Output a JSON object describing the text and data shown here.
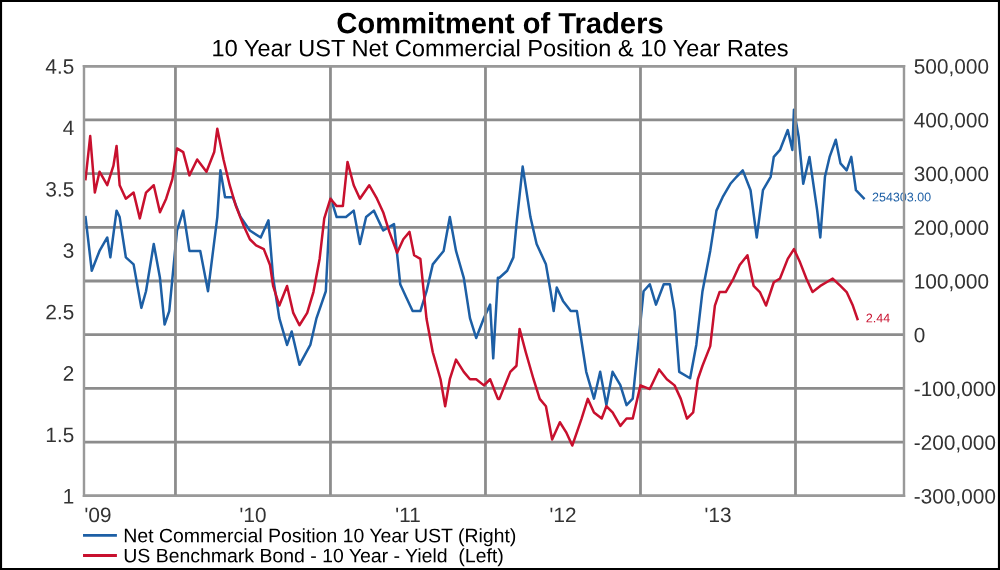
{
  "chart_data": {
    "type": "line",
    "title": "Commitment of Traders",
    "subtitle": "10 Year UST Net Commercial Position & 10 Year Rates",
    "xlim": [
      2008.91,
      2014.2
    ],
    "xticks": [
      {
        "value": 2009,
        "label": "'09"
      },
      {
        "value": 2010,
        "label": "'10"
      },
      {
        "value": 2011,
        "label": "'11"
      },
      {
        "value": 2012,
        "label": "'12"
      },
      {
        "value": 2013,
        "label": "'13"
      },
      {
        "value": 2009.5,
        "label": null
      },
      {
        "value": 2010.5,
        "label": null
      },
      {
        "value": 2011.5,
        "label": null
      },
      {
        "value": 2012.5,
        "label": null
      },
      {
        "value": 2013.5,
        "label": null
      }
    ],
    "ylim": [
      1,
      4.5
    ],
    "yticks": [
      1,
      1.5,
      2,
      2.5,
      3,
      3.5,
      4,
      4.5
    ],
    "y2lim": [
      -300000,
      500000
    ],
    "y2ticks": [
      {
        "value": -300000,
        "label": "-300,000"
      },
      {
        "value": -200000,
        "label": "-200,000"
      },
      {
        "value": -100000,
        "label": "-100,000"
      },
      {
        "value": 0,
        "label": "0"
      },
      {
        "value": 100000,
        "label": "100,000"
      },
      {
        "value": 200000,
        "label": "200,000"
      },
      {
        "value": 300000,
        "label": "300,000"
      },
      {
        "value": 400000,
        "label": "400,000"
      },
      {
        "value": 500000,
        "label": "500,000"
      }
    ],
    "grid": true,
    "legend": "bottom",
    "marker": "none",
    "line_style": "solid",
    "series": [
      {
        "name": "Net Commercial Position 10 Year UST (Right)",
        "color": "#1d5fa5",
        "axis": "y2",
        "x": [
          2008.92,
          2008.96,
          2009.01,
          2009.06,
          2009.08,
          2009.12,
          2009.14,
          2009.18,
          2009.23,
          2009.28,
          2009.31,
          2009.36,
          2009.4,
          2009.43,
          2009.46,
          2009.51,
          2009.55,
          2009.59,
          2009.66,
          2009.71,
          2009.77,
          2009.79,
          2009.82,
          2009.87,
          2009.92,
          2009.98,
          2010.05,
          2010.1,
          2010.13,
          2010.17,
          2010.22,
          2010.25,
          2010.3,
          2010.37,
          2010.41,
          2010.47,
          2010.5,
          2010.54,
          2010.6,
          2010.65,
          2010.69,
          2010.73,
          2010.78,
          2010.84,
          2010.91,
          2010.95,
          2010.99,
          2011.03,
          2011.08,
          2011.12,
          2011.16,
          2011.23,
          2011.27,
          2011.31,
          2011.36,
          2011.4,
          2011.44,
          2011.49,
          2011.53,
          2011.55,
          2011.58,
          2011.59,
          2011.64,
          2011.68,
          2011.7,
          2011.74,
          2011.79,
          2011.83,
          2011.89,
          2011.92,
          2011.94,
          2011.96,
          2012.0,
          2012.05,
          2012.09,
          2012.11,
          2012.15,
          2012.2,
          2012.24,
          2012.28,
          2012.32,
          2012.37,
          2012.41,
          2012.45,
          2012.52,
          2012.56,
          2012.6,
          2012.65,
          2012.69,
          2012.72,
          2012.75,
          2012.82,
          2012.86,
          2012.9,
          2012.95,
          2012.99,
          2013.03,
          2013.08,
          2013.12,
          2013.16,
          2013.21,
          2013.25,
          2013.29,
          2013.34,
          2013.36,
          2013.4,
          2013.45,
          2013.48,
          2013.49,
          2013.52,
          2013.55,
          2013.59,
          2013.64,
          2013.66,
          2013.69,
          2013.72,
          2013.76,
          2013.79,
          2013.83,
          2013.86,
          2013.89,
          2013.94
        ],
        "values": [
          219000,
          119000,
          156000,
          181000,
          144000,
          231000,
          219000,
          144000,
          131000,
          50000,
          81000,
          169000,
          106000,
          19000,
          44000,
          194000,
          231000,
          156000,
          156000,
          81000,
          219000,
          306000,
          256000,
          256000,
          219000,
          194000,
          181000,
          213000,
          106000,
          31000,
          -19000,
          6000,
          -56000,
          -19000,
          31000,
          81000,
          256000,
          219000,
          219000,
          231000,
          169000,
          219000,
          231000,
          194000,
          206000,
          94000,
          69000,
          44000,
          44000,
          81000,
          131000,
          156000,
          219000,
          156000,
          106000,
          31000,
          -6000,
          31000,
          56000,
          -44000,
          106000,
          106000,
          119000,
          144000,
          206000,
          313000,
          219000,
          169000,
          131000,
          81000,
          44000,
          88000,
          63000,
          44000,
          44000,
          6000,
          -69000,
          -119000,
          -69000,
          -131000,
          -69000,
          -94000,
          -131000,
          -119000,
          81000,
          94000,
          56000,
          94000,
          94000,
          44000,
          -69000,
          -81000,
          -19000,
          81000,
          156000,
          231000,
          256000,
          281000,
          294000,
          306000,
          269000,
          181000,
          269000,
          294000,
          331000,
          344000,
          381000,
          344000,
          419000,
          369000,
          281000,
          331000,
          231000,
          181000,
          294000,
          331000,
          363000,
          319000,
          306000,
          331000,
          269000,
          254303
        ],
        "value_labels": [
          null,
          null,
          null,
          null,
          null,
          null,
          null,
          null,
          null,
          null,
          null,
          null,
          null,
          null,
          null,
          null,
          null,
          null,
          null,
          null,
          null,
          null,
          null,
          null,
          null,
          null,
          null,
          null,
          null,
          null,
          null,
          null,
          null,
          null,
          null,
          null,
          null,
          null,
          null,
          null,
          null,
          null,
          null,
          null,
          null,
          null,
          null,
          null,
          null,
          null,
          null,
          null,
          null,
          null,
          null,
          null,
          null,
          null,
          null,
          null,
          null,
          null,
          null,
          null,
          null,
          null,
          null,
          null,
          null,
          null,
          null,
          null,
          null,
          null,
          null,
          null,
          null,
          null,
          null,
          null,
          null,
          null,
          null,
          null,
          null,
          null,
          null,
          null,
          null,
          null,
          null,
          null,
          null,
          null,
          null,
          null,
          null,
          null,
          null,
          null,
          null,
          null,
          null,
          null,
          null,
          null,
          null,
          null,
          null,
          null,
          null,
          null,
          null,
          null,
          null,
          null,
          null,
          null,
          null,
          null,
          null,
          "254303.00"
        ]
      },
      {
        "name": "US Benchmark Bond - 10 Year - Yield  (Left)",
        "color": "#c8102e",
        "x": [
          2008.92,
          2008.95,
          2008.98,
          2009.01,
          2009.06,
          2009.1,
          2009.12,
          2009.14,
          2009.18,
          2009.23,
          2009.27,
          2009.31,
          2009.36,
          2009.4,
          2009.44,
          2009.48,
          2009.51,
          2009.55,
          2009.59,
          2009.64,
          2009.7,
          2009.75,
          2009.77,
          2009.81,
          2009.85,
          2009.89,
          2009.94,
          2009.98,
          2010.02,
          2010.07,
          2010.11,
          2010.13,
          2010.17,
          2010.22,
          2010.26,
          2010.3,
          2010.35,
          2010.39,
          2010.43,
          2010.46,
          2010.5,
          2010.54,
          2010.58,
          2010.61,
          2010.65,
          2010.69,
          2010.75,
          2010.8,
          2010.84,
          2010.88,
          2010.93,
          2010.97,
          2011.01,
          2011.04,
          2011.08,
          2011.12,
          2011.16,
          2011.21,
          2011.24,
          2011.27,
          2011.31,
          2011.36,
          2011.4,
          2011.44,
          2011.49,
          2011.53,
          2011.58,
          2011.59,
          2011.66,
          2011.7,
          2011.72,
          2011.76,
          2011.81,
          2011.85,
          2011.89,
          2011.93,
          2011.98,
          2012.02,
          2012.06,
          2012.09,
          2012.12,
          2012.16,
          2012.2,
          2012.25,
          2012.28,
          2012.32,
          2012.37,
          2012.41,
          2012.45,
          2012.5,
          2012.56,
          2012.62,
          2012.67,
          2012.72,
          2012.76,
          2012.8,
          2012.84,
          2012.87,
          2012.9,
          2012.95,
          2012.98,
          2013.01,
          2013.05,
          2013.1,
          2013.14,
          2013.19,
          2013.23,
          2013.27,
          2013.31,
          2013.36,
          2013.4,
          2013.45,
          2013.49,
          2013.53,
          2013.57,
          2013.61,
          2013.66,
          2013.7,
          2013.74,
          2013.79,
          2013.83,
          2013.87,
          2013.9
        ],
        "values": [
          3.58,
          3.93,
          3.47,
          3.64,
          3.53,
          3.69,
          3.85,
          3.53,
          3.42,
          3.47,
          3.26,
          3.47,
          3.53,
          3.31,
          3.42,
          3.58,
          3.83,
          3.8,
          3.61,
          3.74,
          3.64,
          3.8,
          3.99,
          3.74,
          3.53,
          3.36,
          3.2,
          3.09,
          3.04,
          3.01,
          2.88,
          2.71,
          2.55,
          2.71,
          2.49,
          2.39,
          2.49,
          2.66,
          2.93,
          3.26,
          3.42,
          3.36,
          3.36,
          3.72,
          3.53,
          3.42,
          3.53,
          3.42,
          3.31,
          3.15,
          2.98,
          3.09,
          3.15,
          2.96,
          2.93,
          2.44,
          2.17,
          1.95,
          1.73,
          1.95,
          2.11,
          2.01,
          1.95,
          1.95,
          1.9,
          1.95,
          1.79,
          1.79,
          2.01,
          2.06,
          2.36,
          2.17,
          1.95,
          1.79,
          1.73,
          1.46,
          1.6,
          1.52,
          1.41,
          1.52,
          1.63,
          1.79,
          1.68,
          1.63,
          1.73,
          1.68,
          1.57,
          1.63,
          1.63,
          1.9,
          1.87,
          2.03,
          1.95,
          1.9,
          1.79,
          1.63,
          1.68,
          1.95,
          2.06,
          2.22,
          2.55,
          2.66,
          2.66,
          2.77,
          2.88,
          2.96,
          2.71,
          2.66,
          2.55,
          2.74,
          2.77,
          2.93,
          3.01,
          2.9,
          2.77,
          2.66,
          2.71,
          2.74,
          2.77,
          2.71,
          2.66,
          2.55,
          2.44
        ],
        "value_labels": [
          null,
          null,
          null,
          null,
          null,
          null,
          null,
          null,
          null,
          null,
          null,
          null,
          null,
          null,
          null,
          null,
          null,
          null,
          null,
          null,
          null,
          null,
          null,
          null,
          null,
          null,
          null,
          null,
          null,
          null,
          null,
          null,
          null,
          null,
          null,
          null,
          null,
          null,
          null,
          null,
          null,
          null,
          null,
          null,
          null,
          null,
          null,
          null,
          null,
          null,
          null,
          null,
          null,
          null,
          null,
          null,
          null,
          null,
          null,
          null,
          null,
          null,
          null,
          null,
          null,
          null,
          null,
          null,
          null,
          null,
          null,
          null,
          null,
          null,
          null,
          null,
          null,
          null,
          null,
          null,
          null,
          null,
          null,
          null,
          null,
          null,
          null,
          null,
          null,
          null,
          null,
          null,
          null,
          null,
          null,
          null,
          null,
          null,
          null,
          null,
          null,
          null,
          null,
          null,
          null,
          null,
          null,
          null,
          null,
          null,
          null,
          null,
          null,
          null,
          null,
          null,
          null,
          null,
          null,
          null,
          null,
          null,
          "2.44"
        ]
      }
    ]
  }
}
